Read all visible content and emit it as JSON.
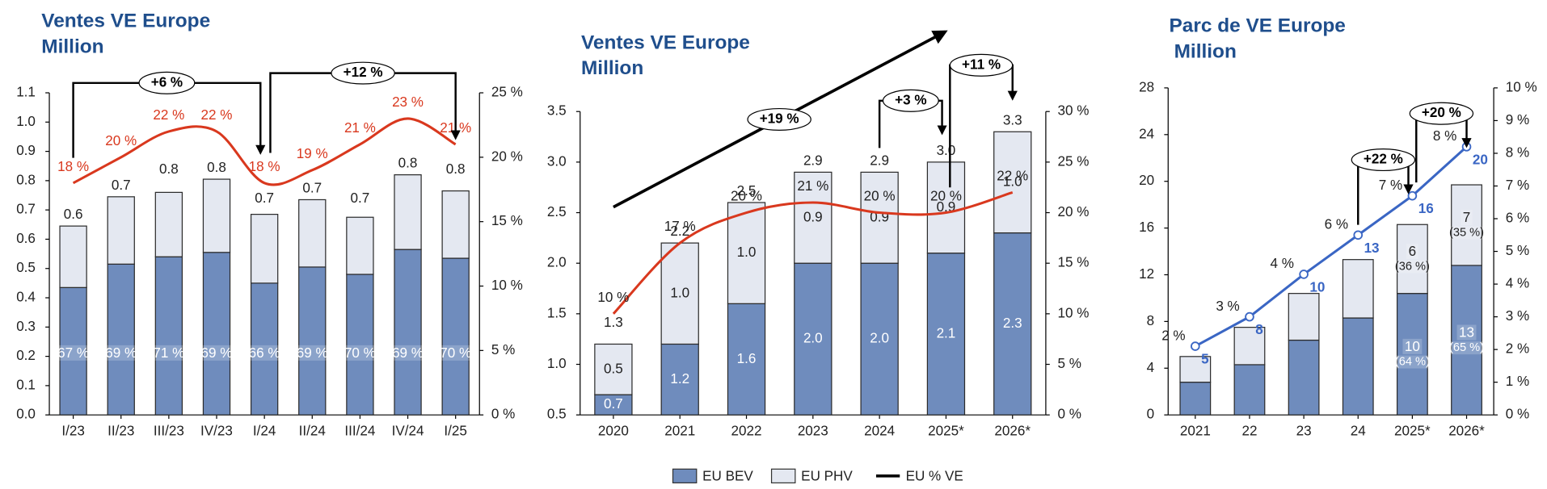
{
  "chart_data": [
    {
      "type": "bar",
      "title": "Ventes VE Europe",
      "subtitle": "Million",
      "categories": [
        "I/23",
        "II/23",
        "III/23",
        "IV/23",
        "I/24",
        "II/24",
        "III/24",
        "IV/24",
        "I/25"
      ],
      "series": [
        {
          "color": "#6f8cbd",
          "label_color": "#ffffff",
          "values": [
            0.435,
            0.515,
            0.54,
            0.555,
            0.45,
            0.505,
            0.48,
            0.565,
            0.535
          ],
          "share_labels": [
            "67 %",
            "69 %",
            "71 %",
            "69 %",
            "66 %",
            "69 %",
            "70 %",
            "69 %",
            "70 %"
          ]
        },
        {
          "color": "#e4e8f1",
          "values": [
            0.21,
            0.23,
            0.22,
            0.25,
            0.235,
            0.23,
            0.195,
            0.255,
            0.23
          ]
        },
        {
          "type": "line",
          "axis": "y2",
          "color": "#d9381e",
          "label_color": "#d9381e",
          "smooth": true,
          "values": [
            18,
            20,
            22,
            22,
            18,
            19,
            21,
            23,
            21
          ],
          "value_labels": [
            "18 %",
            "20 %",
            "22 %",
            "22 %",
            "18 %",
            "19 %",
            "21 %",
            "23 %",
            "21 %"
          ]
        }
      ],
      "totals": [
        0.6,
        0.7,
        0.8,
        0.8,
        0.7,
        0.7,
        0.7,
        0.8,
        0.8
      ],
      "ylim": [
        0,
        1.1
      ],
      "yticks": [
        {
          "value": 0,
          "label": "0.0"
        },
        0.1,
        0.2,
        0.3,
        0.4,
        0.5,
        0.6,
        0.7,
        0.8,
        0.9,
        {
          "value": 1,
          "label": "1.0"
        },
        1.1
      ],
      "y2lim": [
        0,
        25
      ],
      "y2ticks": [
        {
          "value": 0,
          "label": "0 %"
        },
        {
          "value": 5,
          "label": "5 %"
        },
        {
          "value": 10,
          "label": "10 %"
        },
        {
          "value": 15,
          "label": "15 %"
        },
        {
          "value": 20,
          "label": "20 %"
        },
        {
          "value": 25,
          "label": "25 %"
        }
      ],
      "annotations": [
        {
          "text": "+6 %",
          "from": "I/23",
          "to": "I/24"
        },
        {
          "text": "+12 %",
          "from": "I/24",
          "to": "I/25"
        }
      ]
    },
    {
      "type": "bar",
      "title": "Ventes VE Europe",
      "subtitle": "Million",
      "categories": [
        "2020",
        "2021",
        "2022",
        "2023",
        "2024",
        "2025*",
        "2026*"
      ],
      "series": [
        {
          "name": "EU BEV",
          "color": "#6f8cbd",
          "label_color": "#ffffff",
          "values": [
            0.7,
            1.2,
            1.6,
            2.0,
            2.0,
            2.1,
            2.3
          ],
          "value_labels": [
            "0.7",
            "1.2",
            "1.6",
            "2.0",
            "2.0",
            "2.1",
            "2.3"
          ]
        },
        {
          "name": "EU PHV",
          "color": "#e4e8f1",
          "values": [
            0.5,
            1.0,
            1.0,
            0.9,
            0.9,
            0.9,
            1.0
          ],
          "value_labels": [
            "0.5",
            "1.0",
            "1.0",
            "0.9",
            "0.9",
            "0.9",
            "1.0"
          ]
        },
        {
          "name": "EU % VE",
          "type": "line",
          "axis": "y2",
          "color": "#d9381e",
          "label_color": "#222222",
          "smooth": true,
          "values": [
            10,
            17,
            20,
            21,
            20,
            20,
            22
          ],
          "value_labels": [
            "10 %",
            "17 %",
            "20 %",
            "21 %",
            "20 %",
            "20 %",
            "22 %"
          ]
        }
      ],
      "totals": [
        1.3,
        2.2,
        2.5,
        2.9,
        2.9,
        3.0,
        3.3
      ],
      "total_labels": [
        "1.3",
        "2.2",
        "2.5",
        "2.9",
        "2.9",
        "3.0",
        "3.3"
      ],
      "ylim": [
        0.5,
        3.5
      ],
      "yticks": [
        0.5,
        {
          "value": 1,
          "label": "1.0"
        },
        1.5,
        {
          "value": 2,
          "label": "2.0"
        },
        2.5,
        {
          "value": 3,
          "label": "3.0"
        },
        3.5
      ],
      "y2lim": [
        0,
        30
      ],
      "y2ticks": [
        {
          "value": 0,
          "label": "0 %"
        },
        {
          "value": 5,
          "label": "5 %"
        },
        {
          "value": 10,
          "label": "10 %"
        },
        {
          "value": 15,
          "label": "15 %"
        },
        {
          "value": 20,
          "label": "20 %"
        },
        {
          "value": 25,
          "label": "25 %"
        },
        {
          "value": 30,
          "label": "30 %"
        }
      ],
      "annotations": [
        {
          "text": "+19 %",
          "from": "2020"
        },
        {
          "text": "+3 %",
          "from": "2024",
          "to": "2025*"
        },
        {
          "text": "+11 %",
          "from": "2025*",
          "to": "2026*"
        }
      ]
    },
    {
      "type": "bar",
      "title": "Parc de VE Europe",
      "subtitle": "Million",
      "categories": [
        "2021",
        "22",
        "23",
        "24",
        "2025*",
        "2026*"
      ],
      "series": [
        {
          "color": "#6f8cbd",
          "label_color": "#ffffff",
          "values": [
            2.8,
            4.3,
            6.4,
            8.3,
            10.4,
            12.8
          ],
          "value_labels": [
            null,
            null,
            null,
            null,
            "10",
            "13"
          ],
          "share_labels": [
            null,
            null,
            null,
            null,
            "(64 %)",
            "(65 %)"
          ]
        },
        {
          "color": "#e4e8f1",
          "values": [
            2.2,
            3.2,
            4.0,
            5.0,
            5.9,
            6.9
          ],
          "value_labels": [
            null,
            null,
            null,
            null,
            "6",
            "7"
          ],
          "share_labels": [
            null,
            null,
            null,
            null,
            "(36 %)",
            "(35 %)"
          ]
        },
        {
          "type": "line",
          "axis": "y2",
          "color": "#3a66c4",
          "label_color": "#222222",
          "marker": "circle",
          "values": [
            2.1,
            3.0,
            4.3,
            5.5,
            6.7,
            8.2
          ],
          "value_labels": [
            "2 %",
            "3 %",
            "4 %",
            "6 %",
            "7 %",
            "8 %"
          ]
        }
      ],
      "totals": [
        5,
        8,
        10,
        13,
        16,
        20
      ],
      "totals_color": "#3a66c4",
      "ylim": [
        0,
        28
      ],
      "yticks": [
        0,
        4,
        8,
        12,
        16,
        20,
        24,
        28
      ],
      "y2lim": [
        0,
        10
      ],
      "y2ticks": [
        {
          "value": 0,
          "label": "0 %"
        },
        {
          "value": 1,
          "label": "1 %"
        },
        {
          "value": 2,
          "label": "2 %"
        },
        {
          "value": 3,
          "label": "3 %"
        },
        {
          "value": 4,
          "label": "4 %"
        },
        {
          "value": 5,
          "label": "5 %"
        },
        {
          "value": 6,
          "label": "6 %"
        },
        {
          "value": 7,
          "label": "7 %"
        },
        {
          "value": 8,
          "label": "8 %"
        },
        {
          "value": 9,
          "label": "9 %"
        },
        {
          "value": 10,
          "label": "10 %"
        }
      ],
      "annotations": [
        {
          "text": "+22 %",
          "from": "24",
          "to": "2025*"
        },
        {
          "text": "+20 %",
          "from": "2025*",
          "to": "2026*"
        }
      ]
    }
  ]
}
